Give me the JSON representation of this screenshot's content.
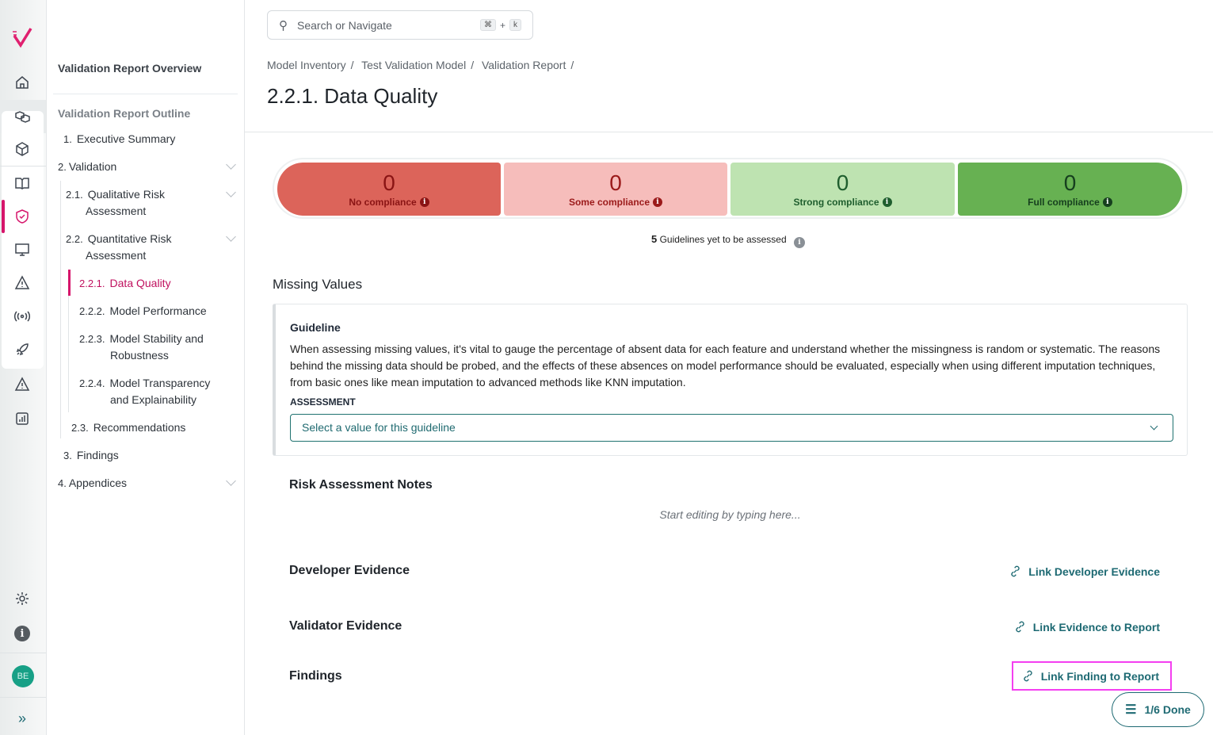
{
  "sidebar": {
    "overview": "Validation Report Overview",
    "outline_title": "Validation Report Outline",
    "items": [
      {
        "num": "1.",
        "label": "Executive Summary"
      },
      {
        "num": "2.",
        "label": "Validation"
      },
      {
        "num": "2.1.",
        "label": "Qualitative Risk",
        "label2": "Assessment"
      },
      {
        "num": "2.2.",
        "label": "Quantitative Risk",
        "label2": "Assessment"
      },
      {
        "num": "2.2.1.",
        "label": "Data Quality",
        "active": true
      },
      {
        "num": "2.2.2.",
        "label": "Model Performance"
      },
      {
        "num": "2.2.3.",
        "label": "Model Stability and",
        "label2": "Robustness"
      },
      {
        "num": "2.2.4.",
        "label": "Model Transparency",
        "label2": "and Explainability"
      },
      {
        "num": "2.3.",
        "label": "Recommendations"
      },
      {
        "num": "3.",
        "label": "Findings"
      },
      {
        "num": "4.",
        "label": "Appendices"
      }
    ]
  },
  "rail": {
    "avatar": "BE",
    "accent": "#d6156b"
  },
  "search": {
    "placeholder": "Search or Navigate",
    "key1": "⌘",
    "plus": "+",
    "key2": "k"
  },
  "breadcrumb": [
    "Model Inventory",
    "Test Validation Model",
    "Validation Report"
  ],
  "breadcrumb_sep": "/",
  "page_title": "2.2.1. Data Quality",
  "compliance": [
    {
      "value": "0",
      "label": "No compliance",
      "bg": "#dc645a",
      "fg": "#8a1414"
    },
    {
      "value": "0",
      "label": "Some compliance",
      "bg": "#f6bdbb",
      "fg": "#9b1a1a"
    },
    {
      "value": "0",
      "label": "Strong compliance",
      "bg": "#bee3b1",
      "fg": "#1f5e2e"
    },
    {
      "value": "0",
      "label": "Full compliance",
      "bg": "#67b152",
      "fg": "#163f1e"
    }
  ],
  "yet": {
    "count": "5",
    "text": "Guidelines yet to be assessed"
  },
  "section_title": "Missing Values",
  "guideline": {
    "label": "Guideline",
    "text": "When assessing missing values, it's vital to gauge the percentage of absent data for each feature and understand whether the missingness is random or systematic. The reasons behind the missing data should be probed, and the effects of these absences on model performance should be evaluated, especially when using different imputation techniques, from basic ones like mean imputation to advanced methods like KNN imputation.",
    "assessment_label": "ASSESSMENT",
    "select_placeholder": "Select a value for this guideline"
  },
  "notes": {
    "title": "Risk Assessment Notes",
    "placeholder": "Start editing by typing here..."
  },
  "developer_evidence": {
    "title": "Developer Evidence",
    "link": "Link Developer Evidence"
  },
  "validator_evidence": {
    "title": "Validator Evidence",
    "link": "Link Evidence to Report"
  },
  "findings": {
    "title": "Findings",
    "link": "Link Finding to Report"
  },
  "progress": {
    "label": "1/6 Done"
  }
}
